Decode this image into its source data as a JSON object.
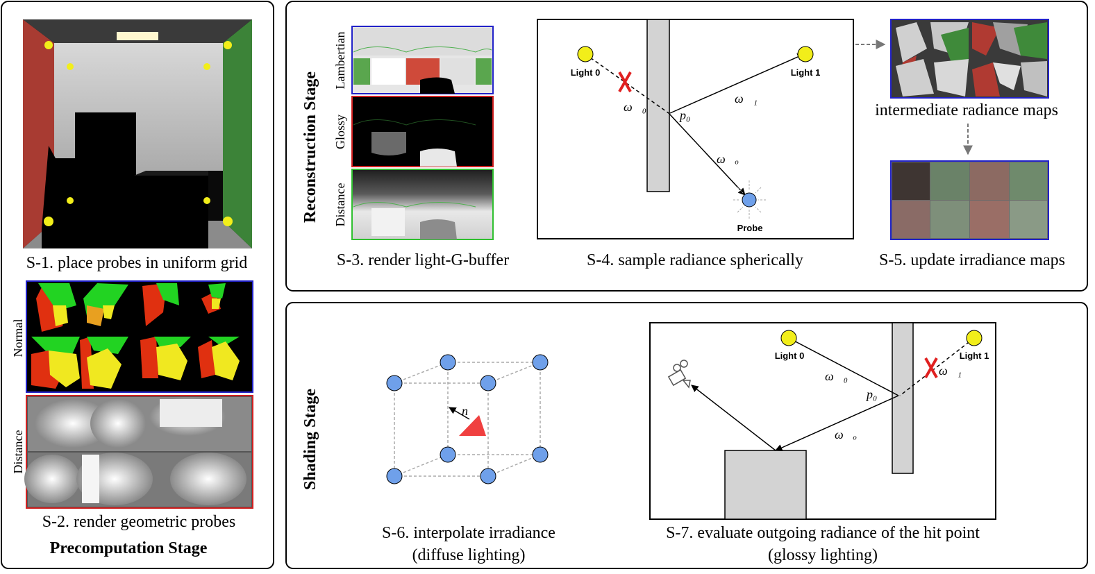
{
  "precomputation": {
    "title": "Precomputation Stage",
    "s1": "S-1. place probes in uniform grid",
    "s2": "S-2. render geometric probes",
    "normal_label": "Normal",
    "distance_label": "Distance"
  },
  "reconstruction": {
    "title": "Reconstruction Stage",
    "s3": "S-3. render light-G-buffer",
    "s4": "S-4. sample radiance spherically",
    "s5": "S-5. update irradiance maps",
    "intermediate": "intermediate radiance maps",
    "lambertian_label": "Lambertian",
    "glossy_label": "Glossy",
    "distance_label": "Distance",
    "light0": "Light 0",
    "light1": "Light 1",
    "probe": "Probe",
    "w0": "ω⃗₀",
    "w1": "ω⃗₁",
    "p0": "p₀",
    "wo": "ω⃗ₒ"
  },
  "shading": {
    "title": "Shading Stage",
    "s6_line1": "S-6. interpolate irradiance",
    "s6_line2": "(diffuse lighting)",
    "s7_line1": "S-7. evaluate outgoing radiance of the hit point",
    "s7_line2": "(glossy lighting)",
    "light0": "Light 0",
    "light1": "Light 1",
    "n": "n⃗",
    "w0": "ω⃗₀",
    "w1": "ω⃗₁",
    "p0": "p₀",
    "wo": "ω⃗ₒ"
  },
  "colors": {
    "red_wall": "#b03a32",
    "green_wall": "#3f8a3a",
    "probe_yellow": "#f2ee1a",
    "probe_blue": "#6fa0ea",
    "frame_blue": "#2222c8",
    "frame_red": "#d22020",
    "frame_green": "#30c030",
    "cross_red": "#e02020"
  }
}
